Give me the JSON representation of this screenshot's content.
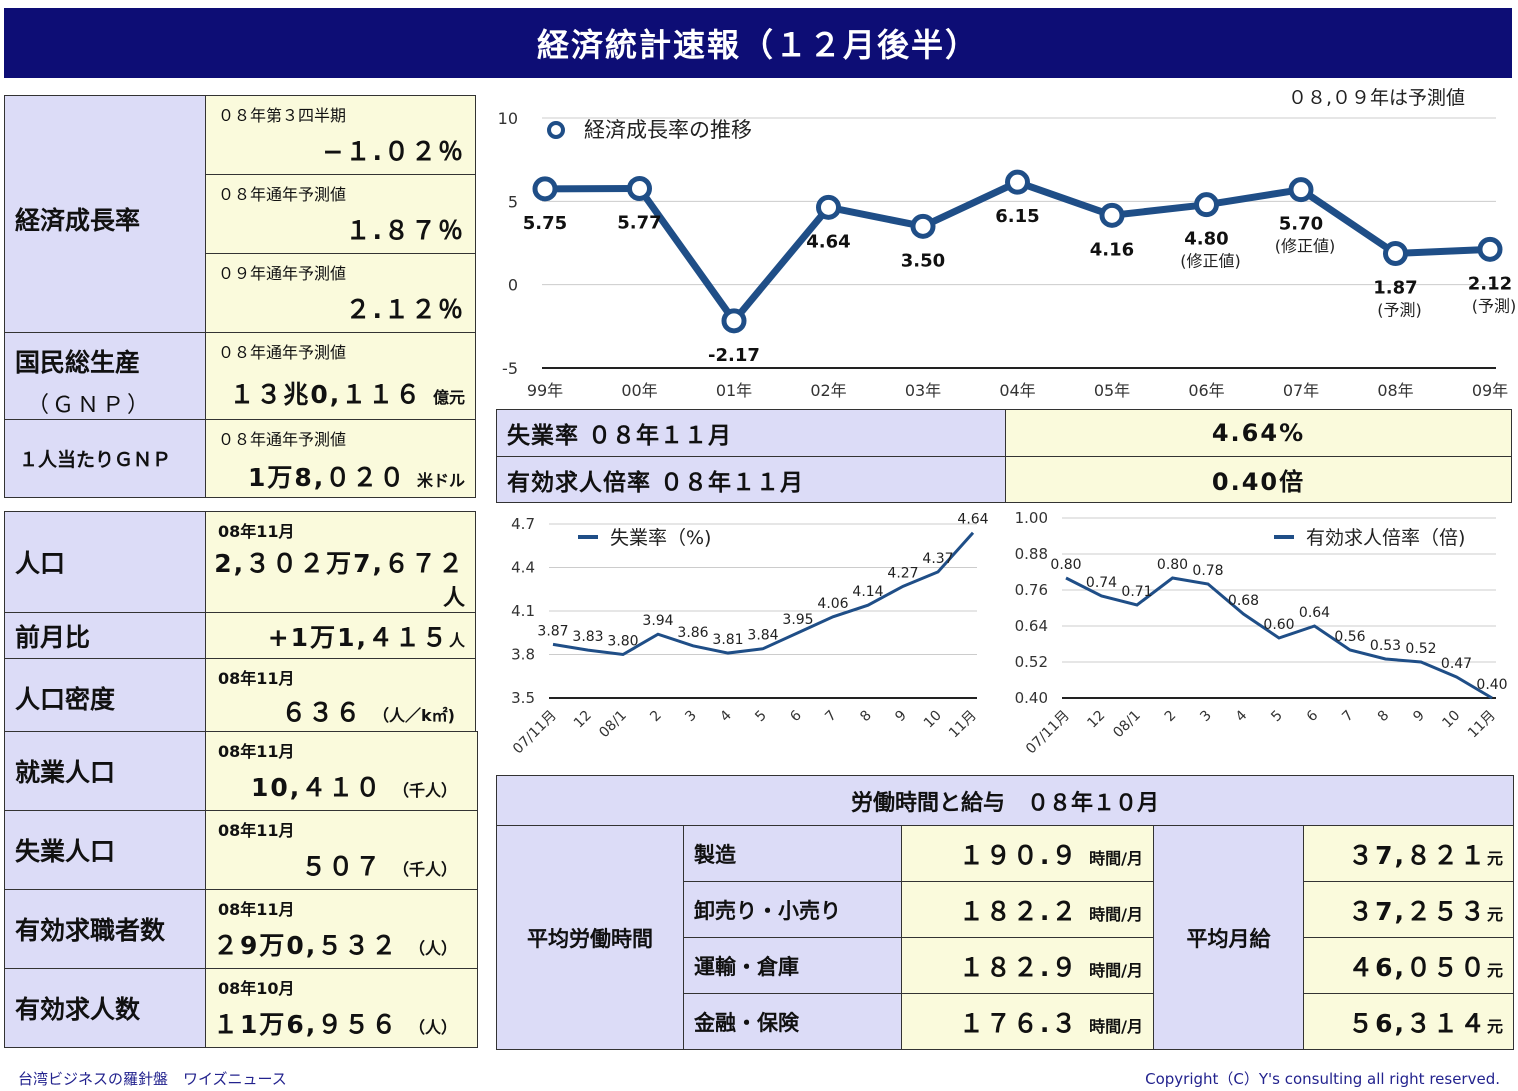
{
  "header": {
    "title": "経済統計速報（１２月後半）"
  },
  "growth": {
    "label": "経済成長率",
    "rows": [
      {
        "sub": "０８年第３四半期",
        "value": "−１.０２％"
      },
      {
        "sub": "０８年通年予測値",
        "value": "１.８７％"
      },
      {
        "sub": "０９年通年予測値",
        "value": "２.１２％"
      }
    ]
  },
  "gnp": {
    "label": "国民総生産",
    "label2": "（ＧＮＰ）",
    "sub": "０８年通年予測値",
    "value": "１３兆0,１１６",
    "unit": "億元"
  },
  "gnp_pc": {
    "label": "１人当たりＧＮＰ",
    "sub": "０８年通年予測値",
    "value": "1万8,０２０",
    "unit": "米ドル"
  },
  "population": {
    "label": "人口",
    "sub": "08年11月",
    "value": "2,３０２万7,６７２",
    "unit": "人",
    "change_label": "前月比",
    "change_value": "+1万1,４１５",
    "change_unit": "人",
    "density_label": "人口密度",
    "density_sub": "08年11月",
    "density_value": "６３６",
    "density_unit": "（人／k㎡)"
  },
  "employment": {
    "rows": [
      {
        "label": "就業人口",
        "sub": "08年11月",
        "value": "10,４１０",
        "unit": "（千人）"
      },
      {
        "label": "失業人口",
        "sub": "08年11月",
        "value": "５０７",
        "unit": "（千人）"
      },
      {
        "label": "有効求職者数",
        "sub": "08年11月",
        "value": "２9万0,５３２",
        "unit": "（人）"
      },
      {
        "label": "有効求人数",
        "sub": "08年10月",
        "value": "１1万6,９５６",
        "unit": "（人）"
      }
    ]
  },
  "jobs": {
    "rows": [
      {
        "label": "失業率 ０８年１１月",
        "value": "4.64%"
      },
      {
        "label": "有効求人倍率 ０８年１１月",
        "value": "0.40倍"
      }
    ]
  },
  "wages": {
    "title": "労働時間と給与　０８年１０月",
    "hours_label": "平均労働時間",
    "pay_label": "平均月給",
    "hours_unit": "時間/月",
    "pay_unit": "元",
    "rows": [
      {
        "sector": "製造",
        "hours": "１９０.９",
        "pay": "３7,８２１"
      },
      {
        "sector": "卸売り・小売り",
        "hours": "１８２.２",
        "pay": "３7,２５３"
      },
      {
        "sector": "運輸・倉庫",
        "hours": "１８２.９",
        "pay": "４6,０５０"
      },
      {
        "sector": "金融・保険",
        "hours": "１７６.３",
        "pay": "５6,３１４"
      }
    ]
  },
  "footer": {
    "left": "台湾ビジネスの羅針盤　ワイズニュース",
    "right": "Copyright（C）Y's consulting all right reserved."
  },
  "chart_data": [
    {
      "type": "line",
      "title": "",
      "note": "０８,０９年は予測値",
      "x": [
        "99年",
        "00年",
        "01年",
        "02年",
        "03年",
        "04年",
        "05年",
        "06年",
        "07年",
        "08年",
        "09年"
      ],
      "series": [
        {
          "name": "経済成長率の推移",
          "values": [
            5.75,
            5.77,
            -2.17,
            4.64,
            3.5,
            6.15,
            4.16,
            4.8,
            5.7,
            1.87,
            2.12
          ]
        }
      ],
      "point_notes": [
        "",
        "",
        "",
        "",
        "",
        "",
        "",
        "(修正値)",
        "(修正値)",
        "(予測)",
        "(予測)"
      ],
      "yticks": [
        10,
        5,
        0,
        -5
      ],
      "ylim": [
        -5,
        10
      ],
      "color": "#1f4e87"
    },
    {
      "type": "line",
      "x": [
        "07/11月",
        "12",
        "08/1",
        "2",
        "3",
        "4",
        "5",
        "6",
        "7",
        "8",
        "9",
        "10",
        "11月"
      ],
      "series": [
        {
          "name": "失業率（%)",
          "values": [
            3.87,
            3.83,
            3.8,
            3.94,
            3.86,
            3.81,
            3.84,
            3.95,
            4.06,
            4.14,
            4.27,
            4.37,
            4.64
          ]
        }
      ],
      "yticks": [
        "4.7",
        "4.4",
        "4.1",
        "3.8",
        "3.5"
      ],
      "ylim": [
        3.5,
        4.7
      ],
      "color": "#1f4e87"
    },
    {
      "type": "line",
      "x": [
        "07/11月",
        "12",
        "08/1",
        "2",
        "3",
        "4",
        "5",
        "6",
        "7",
        "8",
        "9",
        "10",
        "11月"
      ],
      "series": [
        {
          "name": "有効求人倍率（倍)",
          "values": [
            0.8,
            0.74,
            0.71,
            0.8,
            0.78,
            0.68,
            0.6,
            0.64,
            0.56,
            0.53,
            0.52,
            0.47,
            0.4
          ]
        }
      ],
      "yticks": [
        "1.00",
        "0.88",
        "0.76",
        "0.64",
        "0.52",
        "0.40"
      ],
      "ylim": [
        0.4,
        1.0
      ],
      "color": "#1f4e87"
    }
  ]
}
